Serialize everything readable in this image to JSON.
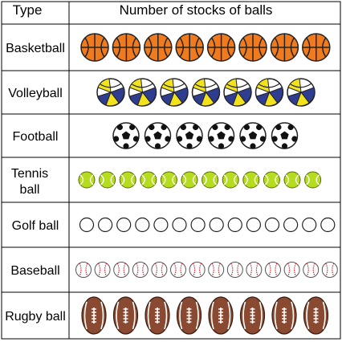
{
  "header": {
    "type_label": "Type",
    "count_label": "Number of stocks of balls"
  },
  "chart_data": {
    "type": "table",
    "categories": [
      "Basketball",
      "Volleyball",
      "Football",
      "Tennis ball",
      "Golf ball",
      "Baseball",
      "Rugby ball"
    ],
    "values": [
      8,
      7,
      6,
      12,
      14,
      14,
      8
    ],
    "icons": [
      "basketball-icon",
      "volleyball-icon",
      "football-icon",
      "tennis-ball-icon",
      "golf-ball-icon",
      "baseball-icon",
      "rugby-ball-icon"
    ],
    "colors": {
      "basketball": "#f07b1e",
      "volleyball_blue": "#2e3d8f",
      "volleyball_yellow": "#f2e21c",
      "tennis": "#b5dc1e",
      "rugby": "#8a4a32",
      "baseball_stitch": "#d0232b"
    }
  }
}
